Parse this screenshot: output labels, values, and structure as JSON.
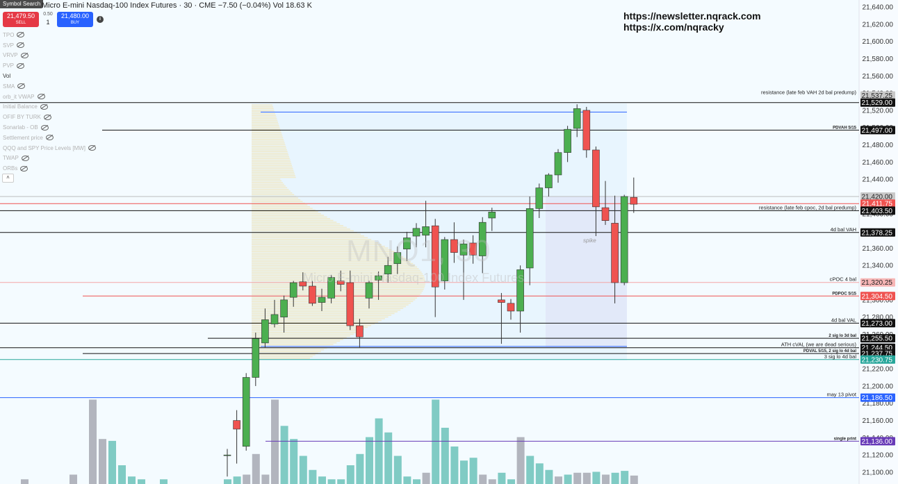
{
  "header": {
    "symbol_search": "Symbol Search",
    "title": "Micro E-mini Nasdaq-100 Index Futures · 30 · CME",
    "change": "−7.50 (−0.04%)",
    "vol_label": "Vol",
    "vol_value": "18.63 K"
  },
  "order": {
    "sell_price": "21,479.50",
    "sell_label": "SELL",
    "spread": "0.50",
    "quantity": "1",
    "buy_price": "21,480.00",
    "buy_label": "BUY",
    "info_icon": "info-icon"
  },
  "indicators": [
    {
      "label": "TPO",
      "active": false
    },
    {
      "label": "SVP",
      "active": false
    },
    {
      "label": "VRVP",
      "active": false
    },
    {
      "label": "PVP",
      "active": false
    },
    {
      "label": "Vol",
      "active": true
    },
    {
      "label": "SMA",
      "active": false
    },
    {
      "label": "orb_it VWAP",
      "active": false
    },
    {
      "label": "Initial Balance",
      "active": false
    },
    {
      "label": "OFIF BY TURK",
      "active": false
    },
    {
      "label": "Sonarlab - OB",
      "active": false
    },
    {
      "label": "Settlement price",
      "active": false
    },
    {
      "label": "QQQ and SPY Price Levels [MW]",
      "active": false
    },
    {
      "label": "TWAP",
      "active": false
    },
    {
      "label": "ORBs",
      "active": false
    }
  ],
  "collapse_icon": "chevron-up-icon",
  "links": {
    "newsletter": "https://newsletter.nqrack.com",
    "x": "https://x.com/nqracky"
  },
  "watermark": {
    "symbol": "MNQ1, 30",
    "name": "Micro E-mini Nasdaq-100 Index Futures"
  },
  "spike_label": "spike",
  "colors": {
    "up": "#4caf50",
    "down": "#ef5350",
    "vol_up": "#80cbc4",
    "vol_down": "#b2b5be",
    "background": "#f4fbff",
    "profile": "#f3e6b5"
  },
  "chart_data": {
    "type": "candlestick",
    "y_axis": {
      "min": 21100,
      "max": 21640,
      "ticks": [
        21640,
        21620,
        21600,
        21580,
        21560,
        21540,
        21520,
        21500,
        21480,
        21460,
        21440,
        21420,
        21400,
        21380,
        21360,
        21340,
        21320,
        21300,
        21280,
        21260,
        21240,
        21220,
        21200,
        21180,
        21160,
        21140,
        21120,
        21100
      ],
      "tick_labels": [
        "21,640.00",
        "21,620.00",
        "21,600.00",
        "21,580.00",
        "21,560.00",
        "21,540.00",
        "21,520.00",
        "21,500.00",
        "21,480.00",
        "21,460.00",
        "21,440.00",
        "21,420.00",
        "21,400.00",
        "21,380.00",
        "21,360.00",
        "21,340.00",
        "21,320.00",
        "21,300.00",
        "21,280.00",
        "21,260.00",
        "21,240.00",
        "21,220.00",
        "21,200.00",
        "21,180.00",
        "21,160.00",
        "21,140.00",
        "21,120.00",
        "21,100.00"
      ]
    },
    "candles": [
      {
        "o": 21120,
        "h": 21127,
        "l": 21095,
        "c": 21120
      },
      {
        "o": 21160,
        "h": 21172,
        "l": 21110,
        "c": 21150
      },
      {
        "o": 21130,
        "h": 21215,
        "l": 21125,
        "c": 21210
      },
      {
        "o": 21210,
        "h": 21262,
        "l": 21200,
        "c": 21255
      },
      {
        "o": 21250,
        "h": 21290,
        "l": 21245,
        "c": 21277
      },
      {
        "o": 21272,
        "h": 21300,
        "l": 21268,
        "c": 21283
      },
      {
        "o": 21280,
        "h": 21305,
        "l": 21262,
        "c": 21300
      },
      {
        "o": 21303,
        "h": 21322,
        "l": 21292,
        "c": 21320
      },
      {
        "o": 21321,
        "h": 21332,
        "l": 21311,
        "c": 21316
      },
      {
        "o": 21316,
        "h": 21322,
        "l": 21293,
        "c": 21296
      },
      {
        "o": 21297,
        "h": 21313,
        "l": 21287,
        "c": 21303
      },
      {
        "o": 21302,
        "h": 21329,
        "l": 21296,
        "c": 21326
      },
      {
        "o": 21322,
        "h": 21334,
        "l": 21310,
        "c": 21318
      },
      {
        "o": 21320,
        "h": 21334,
        "l": 21265,
        "c": 21270
      },
      {
        "o": 21270,
        "h": 21278,
        "l": 21245,
        "c": 21257
      },
      {
        "o": 21302,
        "h": 21322,
        "l": 21290,
        "c": 21320
      },
      {
        "o": 21323,
        "h": 21333,
        "l": 21300,
        "c": 21328
      },
      {
        "o": 21330,
        "h": 21350,
        "l": 21320,
        "c": 21340
      },
      {
        "o": 21342,
        "h": 21362,
        "l": 21330,
        "c": 21355
      },
      {
        "o": 21359,
        "h": 21379,
        "l": 21345,
        "c": 21372
      },
      {
        "o": 21374,
        "h": 21389,
        "l": 21361,
        "c": 21383
      },
      {
        "o": 21375,
        "h": 21415,
        "l": 21361,
        "c": 21385
      },
      {
        "o": 21386,
        "h": 21394,
        "l": 21280,
        "c": 21315
      },
      {
        "o": 21322,
        "h": 21373,
        "l": 21312,
        "c": 21370
      },
      {
        "o": 21370,
        "h": 21390,
        "l": 21343,
        "c": 21355
      },
      {
        "o": 21352,
        "h": 21370,
        "l": 21300,
        "c": 21365
      },
      {
        "o": 21366,
        "h": 21375,
        "l": 21342,
        "c": 21352
      },
      {
        "o": 21351,
        "h": 21396,
        "l": 21331,
        "c": 21390
      },
      {
        "o": 21395,
        "h": 21407,
        "l": 21380,
        "c": 21402
      },
      {
        "o": 21300,
        "h": 21308,
        "l": 21249,
        "c": 21297
      },
      {
        "o": 21296,
        "h": 21301,
        "l": 21277,
        "c": 21287
      },
      {
        "o": 21287,
        "h": 21340,
        "l": 21262,
        "c": 21335
      },
      {
        "o": 21337,
        "h": 21420,
        "l": 21317,
        "c": 21406
      },
      {
        "o": 21406,
        "h": 21435,
        "l": 21395,
        "c": 21430
      },
      {
        "o": 21430,
        "h": 21447,
        "l": 21420,
        "c": 21445
      },
      {
        "o": 21445,
        "h": 21475,
        "l": 21436,
        "c": 21471
      },
      {
        "o": 21471,
        "h": 21502,
        "l": 21460,
        "c": 21498
      },
      {
        "o": 21499,
        "h": 21527,
        "l": 21489,
        "c": 21522
      },
      {
        "o": 21520,
        "h": 21524,
        "l": 21465,
        "c": 21474
      },
      {
        "o": 21474,
        "h": 21478,
        "l": 21374,
        "c": 21408
      },
      {
        "o": 21407,
        "h": 21438,
        "l": 21387,
        "c": 21392
      },
      {
        "o": 21389,
        "h": 21421,
        "l": 21296,
        "c": 21320
      },
      {
        "o": 21320,
        "h": 21422,
        "l": 21317,
        "c": 21420
      },
      {
        "o": 21419,
        "h": 21442,
        "l": 21401,
        "c": 21411
      }
    ],
    "volume": [
      {
        "v": 0.05,
        "up": true
      },
      {
        "v": 0.08,
        "up": true
      },
      {
        "v": 0.1,
        "up": false
      },
      {
        "v": 0.32,
        "up": false
      },
      {
        "v": 0.1,
        "up": false
      },
      {
        "v": 0.9,
        "up": false
      },
      {
        "v": 0.62,
        "up": true
      },
      {
        "v": 0.48,
        "up": true
      },
      {
        "v": 0.3,
        "up": true
      },
      {
        "v": 0.15,
        "up": true
      },
      {
        "v": 0.08,
        "up": true
      },
      {
        "v": 0.05,
        "up": true
      },
      {
        "v": 0.05,
        "up": true
      },
      {
        "v": 0.2,
        "up": true
      },
      {
        "v": 0.32,
        "up": true
      },
      {
        "v": 0.5,
        "up": true
      },
      {
        "v": 0.7,
        "up": true
      },
      {
        "v": 0.55,
        "up": true
      },
      {
        "v": 0.3,
        "up": true
      },
      {
        "v": 0.08,
        "up": true
      },
      {
        "v": 0.05,
        "up": true
      },
      {
        "v": 0.12,
        "up": false
      },
      {
        "v": 0.9,
        "up": true
      },
      {
        "v": 0.6,
        "up": true
      },
      {
        "v": 0.4,
        "up": true
      },
      {
        "v": 0.25,
        "up": true
      },
      {
        "v": 0.28,
        "up": true
      },
      {
        "v": 0.1,
        "up": false
      },
      {
        "v": 0.05,
        "up": false
      },
      {
        "v": 0.12,
        "up": true
      },
      {
        "v": 0.05,
        "up": true
      },
      {
        "v": 0.5,
        "up": false
      },
      {
        "v": 0.3,
        "up": true
      },
      {
        "v": 0.22,
        "up": true
      },
      {
        "v": 0.15,
        "up": true
      },
      {
        "v": 0.08,
        "up": false
      },
      {
        "v": 0.1,
        "up": true
      },
      {
        "v": 0.12,
        "up": false
      },
      {
        "v": 0.12,
        "up": false
      },
      {
        "v": 0.13,
        "up": true
      },
      {
        "v": 0.1,
        "up": false
      },
      {
        "v": 0.12,
        "up": true
      },
      {
        "v": 0.14,
        "up": true
      },
      {
        "v": 0.09,
        "up": false
      }
    ],
    "price_levels": [
      {
        "price": 21537.25,
        "label": "resistance (late feb VAH 2d bal predump)",
        "tag": "21,537.25",
        "color": "#bdbdbd",
        "tag_bg": "#c8c8c8",
        "tag_fg": "#222",
        "bold": false
      },
      {
        "price": 21529.0,
        "label": "",
        "tag": "21,529.00",
        "color": "#111",
        "tag_bg": "#111",
        "tag_fg": "#fff",
        "bold": false
      },
      {
        "price": 21497.0,
        "label": "PDVAH 5/15",
        "tag": "21,497.00",
        "color": "#111",
        "tag_bg": "#111",
        "tag_fg": "#fff",
        "bold": true
      },
      {
        "price": 21420.0,
        "label": "",
        "tag": "21,420.00",
        "color": "#bdbdbd",
        "tag_bg": "#c8c8c8",
        "tag_fg": "#222",
        "bold": false
      },
      {
        "price": 21411.75,
        "label": "",
        "tag": "21,411.75",
        "color": "#ef5350",
        "tag_bg": "#ef5350",
        "tag_fg": "#fff",
        "bold": false
      },
      {
        "price": 21403.5,
        "label": "resistance (late feb cpoc, 2d bal predump)",
        "tag": "21,403.50",
        "color": "#111",
        "tag_bg": "#111",
        "tag_fg": "#fff",
        "bold": false
      },
      {
        "price": 21378.25,
        "label": "4d bal VAH",
        "tag": "21,378.25",
        "color": "#111",
        "tag_bg": "#111",
        "tag_fg": "#fff",
        "bold": false
      },
      {
        "price": 21320.25,
        "label": "cPOC 4 bal",
        "tag": "21,320.25",
        "color": "#f4a6a6",
        "tag_bg": "#f7b6b6",
        "tag_fg": "#222",
        "bold": false
      },
      {
        "price": 21304.5,
        "label": "PDPOC 5/15",
        "tag": "21,304.50",
        "color": "#ef5350",
        "tag_bg": "#ef5350",
        "tag_fg": "#fff",
        "bold": true
      },
      {
        "price": 21273.0,
        "label": "4d bal VAL",
        "tag": "21,273.00",
        "color": "#111",
        "tag_bg": "#111",
        "tag_fg": "#fff",
        "bold": false
      },
      {
        "price": 21255.5,
        "label": "2 sig lo 3d bal",
        "tag": "21,255.50",
        "color": "#111",
        "tag_bg": "#111",
        "tag_fg": "#fff",
        "bold": true
      },
      {
        "price": 21244.5,
        "label": "ATH cVAL (we are dead serious)",
        "tag": "21,244.50",
        "color": "#111",
        "tag_bg": "#111",
        "tag_fg": "#fff",
        "bold": false
      },
      {
        "price": 21237.75,
        "label": "PDVAL 5/15, 2 sig lo 4d bal",
        "tag": "21,237.75",
        "color": "#111",
        "tag_bg": "#111",
        "tag_fg": "#fff",
        "bold": true
      },
      {
        "price": 21230.75,
        "label": "3 sig lo 4d bal",
        "tag": "21,230.75",
        "color": "#26a69a",
        "tag_bg": "#26a69a",
        "tag_fg": "#fff",
        "bold": false
      },
      {
        "price": 21186.5,
        "label": "may 13 pivot",
        "tag": "21,186.50",
        "color": "#2962ff",
        "tag_bg": "#2962ff",
        "tag_fg": "#fff",
        "bold": false
      },
      {
        "price": 21136.0,
        "label": "single print",
        "tag": "21,136.00",
        "color": "#673ab7",
        "tag_bg": "#673ab7",
        "tag_fg": "#fff",
        "bold": true
      }
    ]
  }
}
